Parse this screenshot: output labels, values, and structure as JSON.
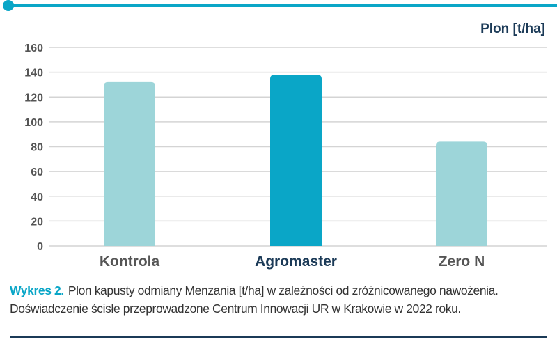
{
  "chart_data": {
    "type": "bar",
    "categories": [
      "Kontrola",
      "Agromaster",
      "Zero N"
    ],
    "values": [
      132,
      138,
      84
    ],
    "ylabel": "Plon [t/ha]",
    "ylim": [
      0,
      160
    ],
    "yticks": [
      0,
      20,
      40,
      60,
      80,
      100,
      120,
      140,
      160
    ],
    "grid": true,
    "highlight_category": "Agromaster"
  },
  "colors": {
    "accent": "#0aa6c7",
    "bar": "#9dd5d9",
    "bar_highlight": "#0aa6c7",
    "label_dark": "#1b3a57",
    "label_muted": "#555555",
    "grid": "#d4d4d4"
  },
  "caption": {
    "label": "Wykres 2.",
    "text": "Plon kapusty odmiany Menzania [t/ha] w zależności od zróżnicowanego nawożenia. Doświadczenie ścisłe przeprowadzone Centrum Innowacji UR w Krakowie w 2022 roku."
  }
}
